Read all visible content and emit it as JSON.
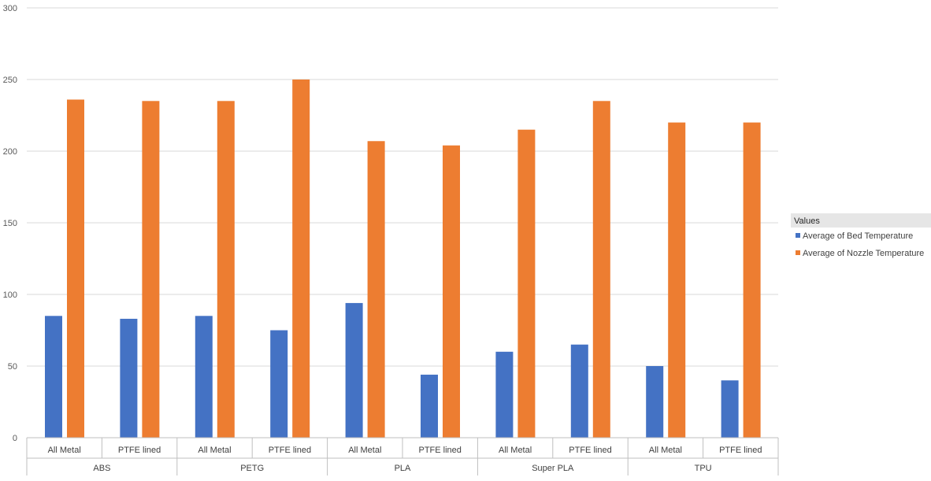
{
  "chart_data": {
    "type": "bar",
    "title": "",
    "xlabel": "",
    "ylabel": "",
    "ylim": [
      0,
      300
    ],
    "yticks": [
      0,
      50,
      100,
      150,
      200,
      250,
      300
    ],
    "grid": true,
    "legend_position": "right",
    "legend_title": "Values",
    "groups": [
      {
        "label": "ABS",
        "subcategories": [
          "All Metal",
          "PTFE lined"
        ]
      },
      {
        "label": "PETG",
        "subcategories": [
          "All Metal",
          "PTFE lined"
        ]
      },
      {
        "label": "PLA",
        "subcategories": [
          "All Metal",
          "PTFE lined"
        ]
      },
      {
        "label": "Super PLA",
        "subcategories": [
          "All Metal",
          "PTFE lined"
        ]
      },
      {
        "label": "TPU",
        "subcategories": [
          "All Metal",
          "PTFE lined"
        ]
      }
    ],
    "categories": [
      "ABS / All Metal",
      "ABS / PTFE lined",
      "PETG / All Metal",
      "PETG / PTFE lined",
      "PLA / All Metal",
      "PLA / PTFE lined",
      "Super PLA / All Metal",
      "Super PLA / PTFE lined",
      "TPU / All Metal",
      "TPU / PTFE lined"
    ],
    "series": [
      {
        "name": "Average of Bed Temperature",
        "color": "#4472C4",
        "values": [
          85,
          83,
          85,
          75,
          94,
          44,
          60,
          65,
          50,
          40
        ]
      },
      {
        "name": "Average of Nozzle Temperature",
        "color": "#ED7D31",
        "values": [
          236,
          235,
          235,
          250,
          207,
          204,
          215,
          235,
          220,
          220
        ]
      }
    ],
    "colors": {
      "gridline": "#D9D9D9",
      "axis": "#BFBFBF",
      "legend_header_bg": "#E6E6E6"
    }
  }
}
